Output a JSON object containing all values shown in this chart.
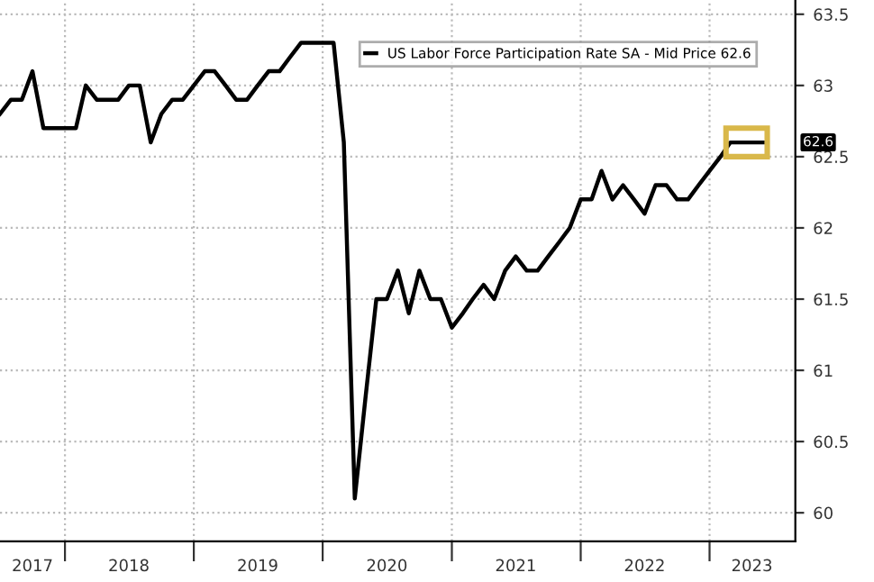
{
  "chart_data": {
    "type": "line",
    "x": [
      "2017-07",
      "2017-08",
      "2017-09",
      "2017-10",
      "2017-11",
      "2017-12",
      "2018-01",
      "2018-02",
      "2018-03",
      "2018-04",
      "2018-05",
      "2018-06",
      "2018-07",
      "2018-08",
      "2018-09",
      "2018-10",
      "2018-11",
      "2018-12",
      "2019-01",
      "2019-02",
      "2019-03",
      "2019-04",
      "2019-05",
      "2019-06",
      "2019-07",
      "2019-08",
      "2019-09",
      "2019-10",
      "2019-11",
      "2019-12",
      "2020-01",
      "2020-02",
      "2020-03",
      "2020-04",
      "2020-05",
      "2020-06",
      "2020-07",
      "2020-08",
      "2020-09",
      "2020-10",
      "2020-11",
      "2020-12",
      "2021-01",
      "2021-02",
      "2021-03",
      "2021-04",
      "2021-05",
      "2021-06",
      "2021-07",
      "2021-08",
      "2021-09",
      "2021-10",
      "2021-11",
      "2021-12",
      "2022-01",
      "2022-02",
      "2022-03",
      "2022-04",
      "2022-05",
      "2022-06",
      "2022-07",
      "2022-08",
      "2022-09",
      "2022-10",
      "2022-11",
      "2022-12",
      "2023-01",
      "2023-02",
      "2023-03",
      "2023-04",
      "2023-05",
      "2023-06"
    ],
    "series": [
      {
        "name": "US Labor Force Participation Rate SA - Mid Price 62.6",
        "color": "#000000",
        "values": [
          62.8,
          62.9,
          62.9,
          63.1,
          62.7,
          62.7,
          62.7,
          62.7,
          63.0,
          62.9,
          62.9,
          62.9,
          63.0,
          63.0,
          62.6,
          62.8,
          62.9,
          62.9,
          63.0,
          63.1,
          63.1,
          63.0,
          62.9,
          62.9,
          63.0,
          63.1,
          63.1,
          63.2,
          63.3,
          63.3,
          63.3,
          63.3,
          62.6,
          60.1,
          60.8,
          61.5,
          61.5,
          61.7,
          61.4,
          61.7,
          61.5,
          61.5,
          61.3,
          61.4,
          61.5,
          61.6,
          61.5,
          61.7,
          61.8,
          61.7,
          61.7,
          61.8,
          61.9,
          62.0,
          62.2,
          62.2,
          62.4,
          62.2,
          62.3,
          62.2,
          62.1,
          62.3,
          62.3,
          62.2,
          62.2,
          62.3,
          62.4,
          62.5,
          62.6,
          62.6,
          62.6,
          62.6
        ]
      }
    ],
    "xlim": [
      "2017-07",
      "2023-09"
    ],
    "xticks": [
      {
        "value": "2017-10",
        "label": "2017"
      },
      {
        "value": "2018",
        "label": null
      },
      {
        "value": "2018-07",
        "label": "2018"
      },
      {
        "value": "2019",
        "label": null
      },
      {
        "value": "2019-07",
        "label": "2019"
      },
      {
        "value": "2020",
        "label": null
      },
      {
        "value": "2020-07",
        "label": "2020"
      },
      {
        "value": "2021",
        "label": null
      },
      {
        "value": "2021-07",
        "label": "2021"
      },
      {
        "value": "2022",
        "label": null
      },
      {
        "value": "2022-07",
        "label": "2022"
      },
      {
        "value": "2023",
        "label": null
      },
      {
        "value": "2023-05",
        "label": "2023"
      }
    ],
    "ylim": [
      59.8,
      63.6
    ],
    "yticks": [
      60,
      60.5,
      61,
      61.5,
      62,
      62.5,
      63,
      63.5
    ],
    "grid": true,
    "legend": "top right",
    "marker": "none",
    "line_style": "solid",
    "annotations": [
      "62.6"
    ]
  }
}
